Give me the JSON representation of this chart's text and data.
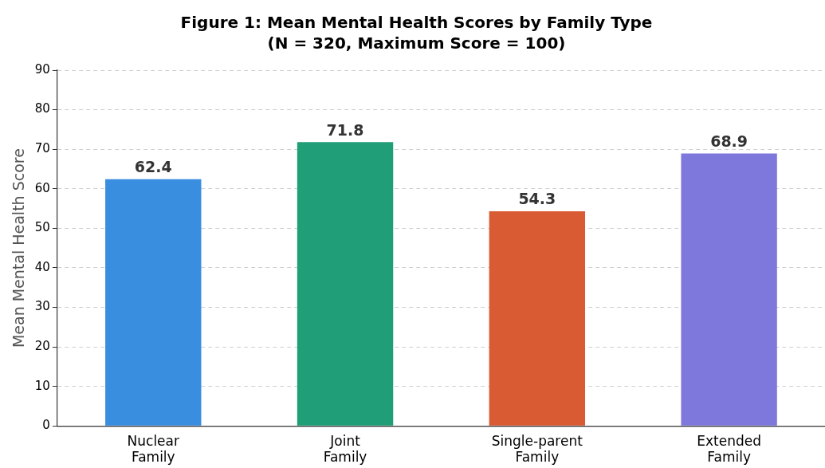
{
  "chart_data": {
    "type": "bar",
    "title": "Figure 1: Mean Mental Health Scores by Family Type",
    "subtitle": "(N = 320, Maximum Score = 100)",
    "ylabel": "Mean Mental Health Score",
    "categories": [
      "Nuclear Family",
      "Joint Family",
      "Single-parent Family",
      "Extended Family"
    ],
    "values": [
      62.4,
      71.8,
      54.3,
      68.9
    ],
    "colors": [
      "#3a8ee0",
      "#1f9e77",
      "#d95b33",
      "#7f78dc"
    ],
    "ylim": [
      0,
      90
    ],
    "yticks": [
      0,
      10,
      20,
      30,
      40,
      50,
      60,
      70,
      80,
      90
    ],
    "grid": "y",
    "data_labels": true,
    "legend": false
  }
}
